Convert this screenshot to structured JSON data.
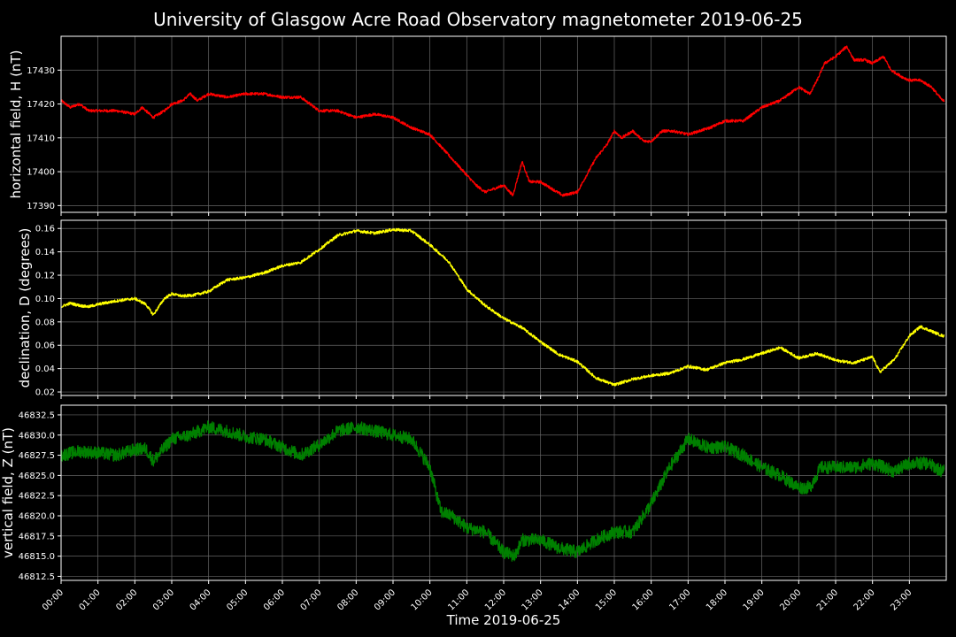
{
  "chart_data": {
    "type": "line",
    "title": "University of Glasgow Acre Road Observatory magnetometer 2019-06-25",
    "xlabel": "Time 2019-06-25",
    "x_ticks": [
      "00:00",
      "01:00",
      "02:00",
      "03:00",
      "04:00",
      "05:00",
      "06:00",
      "07:00",
      "08:00",
      "09:00",
      "10:00",
      "11:00",
      "12:00",
      "13:00",
      "14:00",
      "15:00",
      "16:00",
      "17:00",
      "18:00",
      "19:00",
      "20:00",
      "21:00",
      "22:00",
      "23:00"
    ],
    "xlim_hours": [
      0,
      24
    ],
    "grid": true,
    "panels": [
      {
        "ylabel": "horizontal field, H (nT)",
        "color": "#ff0000",
        "ylim": [
          17388,
          17440
        ],
        "yticks": [
          "17390",
          "17400",
          "17410",
          "17420",
          "17430"
        ],
        "ytick_values": [
          17390,
          17400,
          17410,
          17420,
          17430
        ],
        "noise": 0.4,
        "x": [
          0,
          0.25,
          0.5,
          0.75,
          1,
          1.5,
          2,
          2.2,
          2.5,
          2.8,
          3,
          3.3,
          3.5,
          3.7,
          4,
          4.5,
          5,
          5.5,
          6,
          6.5,
          7,
          7.5,
          8,
          8.5,
          9,
          9.5,
          10,
          10.5,
          11,
          11.25,
          11.5,
          11.75,
          12,
          12.25,
          12.5,
          12.7,
          13,
          13.3,
          13.6,
          14,
          14.5,
          14.8,
          15,
          15.2,
          15.5,
          15.8,
          16,
          16.3,
          16.6,
          17,
          17.3,
          17.6,
          18,
          18.5,
          19,
          19.5,
          20,
          20.3,
          20.5,
          20.7,
          21,
          21.3,
          21.5,
          21.8,
          22,
          22.3,
          22.5,
          22.8,
          23,
          23.3,
          23.6,
          23.9
        ],
        "y": [
          17421,
          17419,
          17420,
          17418,
          17418,
          17418,
          17417,
          17419,
          17416,
          17418,
          17420,
          17421,
          17423,
          17421,
          17423,
          17422,
          17423,
          17423,
          17422,
          17422,
          17418,
          17418,
          17416,
          17417,
          17416,
          17413,
          17411,
          17405,
          17399,
          17396,
          17394,
          17395,
          17396,
          17393,
          17403,
          17397,
          17397,
          17395,
          17393,
          17394,
          17404,
          17408,
          17412,
          17410,
          17412,
          17409,
          17409,
          17412,
          17412,
          17411,
          17412,
          17413,
          17415,
          17415,
          17419,
          17421,
          17425,
          17423,
          17427,
          17432,
          17434,
          17437,
          17433,
          17433,
          17432,
          17434,
          17430,
          17428,
          17427,
          17427,
          17425,
          17421
        ]
      },
      {
        "ylabel": "declination, D (degrees)",
        "color": "#ffff00",
        "ylim": [
          0.017,
          0.167
        ],
        "yticks": [
          "0.02",
          "0.04",
          "0.06",
          "0.08",
          "0.10",
          "0.12",
          "0.14",
          "0.16"
        ],
        "ytick_values": [
          0.02,
          0.04,
          0.06,
          0.08,
          0.1,
          0.12,
          0.14,
          0.16
        ],
        "noise": 0.0012,
        "x": [
          0,
          0.25,
          0.5,
          0.75,
          1,
          1.5,
          2,
          2.3,
          2.5,
          2.8,
          3,
          3.3,
          3.6,
          4,
          4.5,
          5,
          5.5,
          6,
          6.5,
          7,
          7.5,
          8,
          8.5,
          9,
          9.5,
          10,
          10.5,
          11,
          11.5,
          12,
          12.5,
          13,
          13.5,
          14,
          14.5,
          15,
          15.5,
          16,
          16.5,
          17,
          17.5,
          18,
          18.5,
          19,
          19.5,
          20,
          20.5,
          21,
          21.5,
          22,
          22.2,
          22.6,
          23,
          23.3,
          23.6,
          23.9
        ],
        "y": [
          0.093,
          0.096,
          0.094,
          0.093,
          0.095,
          0.098,
          0.1,
          0.095,
          0.086,
          0.1,
          0.104,
          0.102,
          0.103,
          0.106,
          0.116,
          0.118,
          0.122,
          0.128,
          0.131,
          0.142,
          0.154,
          0.158,
          0.156,
          0.159,
          0.158,
          0.146,
          0.132,
          0.108,
          0.094,
          0.083,
          0.075,
          0.063,
          0.052,
          0.046,
          0.032,
          0.026,
          0.031,
          0.034,
          0.036,
          0.042,
          0.039,
          0.045,
          0.048,
          0.053,
          0.058,
          0.049,
          0.053,
          0.047,
          0.045,
          0.05,
          0.037,
          0.048,
          0.068,
          0.076,
          0.072,
          0.068
        ]
      },
      {
        "ylabel": "vertical field, Z (nT)",
        "color": "#008000",
        "ylim": [
          46812.0,
          46833.7
        ],
        "yticks": [
          "46812.5",
          "46815.0",
          "46817.5",
          "46820.0",
          "46822.5",
          "46825.0",
          "46827.5",
          "46830.0",
          "46832.5"
        ],
        "ytick_values": [
          46812.5,
          46815.0,
          46817.5,
          46820.0,
          46822.5,
          46825.0,
          46827.5,
          46830.0,
          46832.5
        ],
        "noise": 0.8,
        "x": [
          0,
          0.5,
          1,
          1.5,
          2,
          2.3,
          2.5,
          3,
          3.5,
          4,
          4.5,
          5,
          5.5,
          6,
          6.5,
          7,
          7.5,
          8,
          8.5,
          9,
          9.5,
          10,
          10.3,
          10.6,
          11,
          11.5,
          12,
          12.3,
          12.5,
          13,
          13.5,
          14,
          14.5,
          15,
          15.5,
          16,
          16.5,
          17,
          17.5,
          18,
          18.5,
          19,
          19.5,
          20,
          20.3,
          20.6,
          21,
          21.5,
          22,
          22.3,
          22.6,
          23,
          23.5,
          23.9
        ],
        "y": [
          46827.5,
          46828.0,
          46827.8,
          46827.5,
          46828.2,
          46828.3,
          46826.8,
          46829.5,
          46830.0,
          46831.0,
          46830.5,
          46829.8,
          46829.5,
          46828.5,
          46827.5,
          46828.8,
          46830.5,
          46831.0,
          46830.5,
          46830.0,
          46829.5,
          46826.0,
          46820.5,
          46820.0,
          46818.5,
          46818.0,
          46815.5,
          46815.0,
          46817.0,
          46817.0,
          46816.0,
          46815.5,
          46817.0,
          46818.0,
          46818.0,
          46821.5,
          46826.0,
          46829.5,
          46828.5,
          46828.5,
          46827.5,
          46826.0,
          46825.0,
          46823.5,
          46823.5,
          46826.0,
          46826.0,
          46826.0,
          46826.5,
          46826.0,
          46825.5,
          46826.5,
          46826.5,
          46825.5
        ]
      }
    ]
  }
}
